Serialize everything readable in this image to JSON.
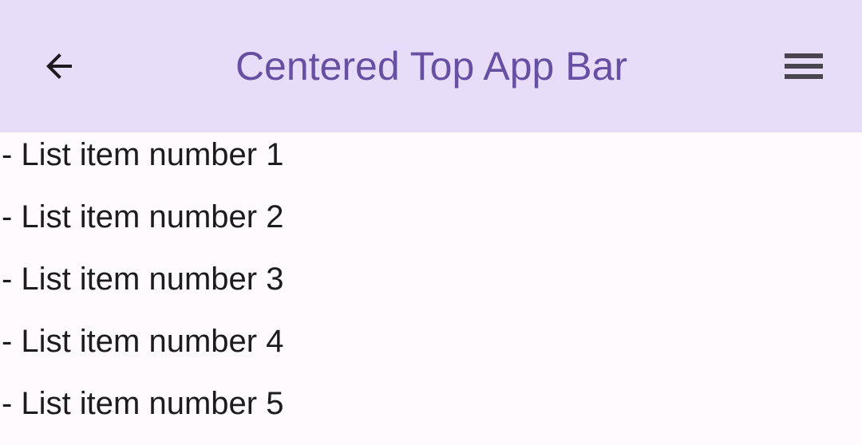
{
  "app_bar": {
    "title": "Centered Top App Bar",
    "background_color": "#E8DDF8",
    "title_color": "#6750A4",
    "back_icon_color": "#1D1B20",
    "menu_icon_color": "#49454E",
    "back_icon": "arrow-back",
    "menu_icon": "hamburger-menu"
  },
  "content": {
    "background_color": "#FFFAFE",
    "text_color": "#1C1B1F",
    "items": [
      "- List item number 1",
      "- List item number 2",
      "- List item number 3",
      "- List item number 4",
      "- List item number 5"
    ]
  }
}
